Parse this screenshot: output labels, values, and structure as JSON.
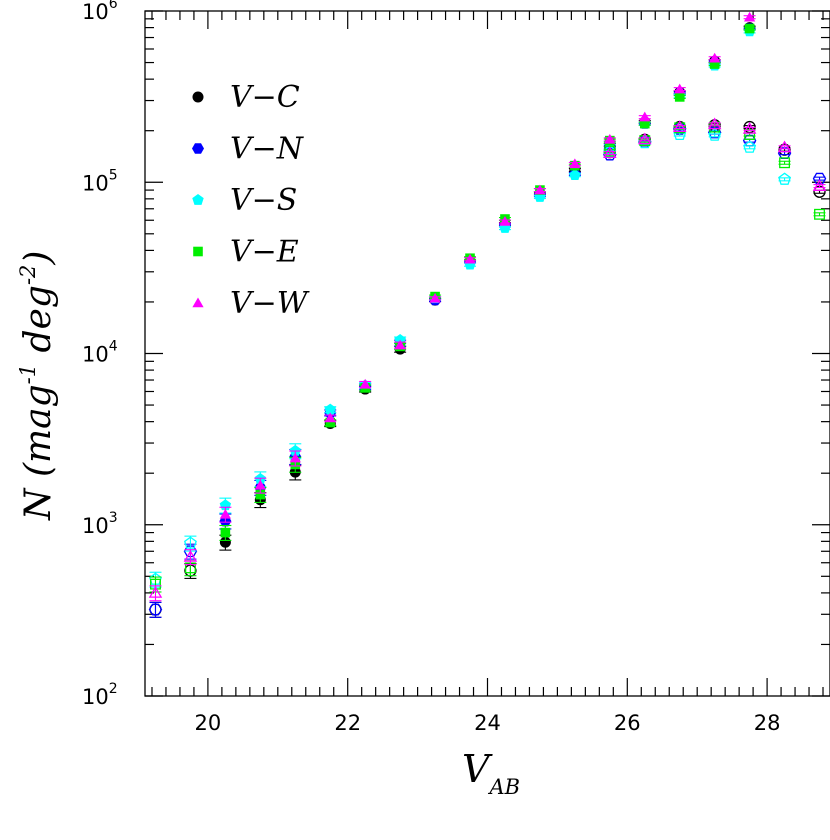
{
  "chart_data": {
    "type": "scatter",
    "title": "",
    "xlabel": "V",
    "xlabel_sub": "AB",
    "ylabel": "N  (mag",
    "ylabel_sup1": "-1",
    "ylabel_mid": " deg",
    "ylabel_sup2": "-2",
    "ylabel_end": ")",
    "xlim": [
      19.1,
      28.9
    ],
    "ylim": [
      100,
      1000000
    ],
    "y_scale": "log",
    "x_ticks": [
      20,
      22,
      24,
      26,
      28
    ],
    "y_ticks": [
      {
        "value": 100,
        "base": "10",
        "exp": "2"
      },
      {
        "value": 1000,
        "base": "10",
        "exp": "3"
      },
      {
        "value": 10000,
        "base": "10",
        "exp": "4"
      },
      {
        "value": 100000,
        "base": "10",
        "exp": "5"
      },
      {
        "value": 1000000,
        "base": "10",
        "exp": "6"
      }
    ],
    "grid": false,
    "legend_position": "top-left",
    "series": [
      {
        "name": "V−C",
        "color": "#000000",
        "marker": "circle",
        "filled": [
          [
            20.25,
            790
          ],
          [
            20.75,
            1400
          ],
          [
            21.25,
            2030
          ],
          [
            21.75,
            3900
          ],
          [
            22.25,
            6200
          ],
          [
            22.75,
            10600
          ],
          [
            23.25,
            20500
          ],
          [
            23.75,
            34500
          ],
          [
            24.25,
            57000
          ],
          [
            24.75,
            86000
          ],
          [
            25.25,
            118000
          ],
          [
            25.75,
            165000
          ],
          [
            26.25,
            225000
          ],
          [
            26.75,
            335000
          ],
          [
            27.25,
            510000
          ],
          [
            27.75,
            800000
          ]
        ],
        "open": [
          [
            19.25,
            320
          ],
          [
            19.75,
            540
          ],
          [
            25.75,
            150000
          ],
          [
            26.25,
            177000
          ],
          [
            26.75,
            210000
          ],
          [
            27.25,
            215000
          ],
          [
            27.75,
            210000
          ],
          [
            28.25,
            155000
          ],
          [
            28.75,
            88000
          ]
        ]
      },
      {
        "name": "V−N",
        "color": "#0000ff",
        "marker": "hexagon",
        "filled": [
          [
            20.25,
            1050
          ],
          [
            20.75,
            1650
          ],
          [
            21.25,
            2500
          ],
          [
            21.75,
            4500
          ],
          [
            22.25,
            6400
          ],
          [
            22.75,
            11500
          ],
          [
            23.25,
            20500
          ],
          [
            23.75,
            34500
          ],
          [
            24.25,
            56000
          ],
          [
            24.75,
            84000
          ],
          [
            25.25,
            112000
          ],
          [
            25.75,
            160000
          ],
          [
            26.25,
            220000
          ],
          [
            26.75,
            330000
          ],
          [
            27.25,
            500000
          ],
          [
            27.75,
            790000
          ]
        ],
        "open": [
          [
            19.25,
            320
          ],
          [
            19.75,
            700
          ],
          [
            25.75,
            145000
          ],
          [
            26.25,
            172000
          ],
          [
            26.75,
            205000
          ],
          [
            27.25,
            195000
          ],
          [
            27.75,
            175000
          ],
          [
            28.25,
            148000
          ],
          [
            28.75,
            105000
          ]
        ]
      },
      {
        "name": "V−S",
        "color": "#00ffff",
        "marker": "pentagon",
        "filled": [
          [
            20.25,
            1300
          ],
          [
            20.75,
            1850
          ],
          [
            21.25,
            2700
          ],
          [
            21.75,
            4700
          ],
          [
            22.25,
            6500
          ],
          [
            22.75,
            12000
          ],
          [
            23.25,
            21000
          ],
          [
            23.75,
            33000
          ],
          [
            24.25,
            54000
          ],
          [
            24.75,
            82000
          ],
          [
            25.25,
            110000
          ],
          [
            25.75,
            170000
          ],
          [
            26.25,
            220000
          ],
          [
            26.75,
            320000
          ],
          [
            27.25,
            480000
          ],
          [
            27.75,
            760000
          ]
        ],
        "open": [
          [
            19.25,
            480
          ],
          [
            19.75,
            780
          ],
          [
            25.75,
            150000
          ],
          [
            26.25,
            170000
          ],
          [
            26.75,
            190000
          ],
          [
            27.25,
            188000
          ],
          [
            27.75,
            160000
          ],
          [
            28.25,
            104000
          ]
        ]
      },
      {
        "name": "V−E",
        "color": "#00ee00",
        "marker": "square",
        "filled": [
          [
            20.25,
            900
          ],
          [
            20.75,
            1500
          ],
          [
            21.25,
            2250
          ],
          [
            21.75,
            3950
          ],
          [
            22.25,
            6300
          ],
          [
            22.75,
            11000
          ],
          [
            23.25,
            21500
          ],
          [
            23.75,
            36000
          ],
          [
            24.25,
            61000
          ],
          [
            24.75,
            90000
          ],
          [
            25.25,
            125000
          ],
          [
            25.75,
            175000
          ],
          [
            26.25,
            220000
          ],
          [
            26.75,
            315000
          ],
          [
            27.25,
            490000
          ],
          [
            27.75,
            790000
          ]
        ],
        "open": [
          [
            19.25,
            450
          ],
          [
            19.75,
            560
          ],
          [
            25.75,
            152000
          ],
          [
            26.25,
            175000
          ],
          [
            26.75,
            208000
          ],
          [
            27.25,
            210000
          ],
          [
            27.75,
            190000
          ],
          [
            28.25,
            130000
          ],
          [
            28.75,
            65000
          ]
        ]
      },
      {
        "name": "V−W",
        "color": "#ff00ff",
        "marker": "triangle",
        "filled": [
          [
            20.25,
            1150
          ],
          [
            20.75,
            1700
          ],
          [
            21.25,
            2450
          ],
          [
            21.75,
            4200
          ],
          [
            22.25,
            6600
          ],
          [
            22.75,
            11200
          ],
          [
            23.25,
            21000
          ],
          [
            23.75,
            35500
          ],
          [
            24.25,
            59000
          ],
          [
            24.75,
            90000
          ],
          [
            25.25,
            128000
          ],
          [
            25.75,
            178000
          ],
          [
            26.25,
            240000
          ],
          [
            26.75,
            350000
          ],
          [
            27.25,
            530000
          ],
          [
            27.75,
            920000
          ]
        ],
        "open": [
          [
            19.25,
            400
          ],
          [
            19.75,
            650
          ],
          [
            25.75,
            148000
          ],
          [
            26.25,
            178000
          ],
          [
            26.75,
            210000
          ],
          [
            27.25,
            218000
          ],
          [
            27.75,
            205000
          ],
          [
            28.25,
            160000
          ],
          [
            28.75,
            95000
          ]
        ]
      }
    ]
  }
}
